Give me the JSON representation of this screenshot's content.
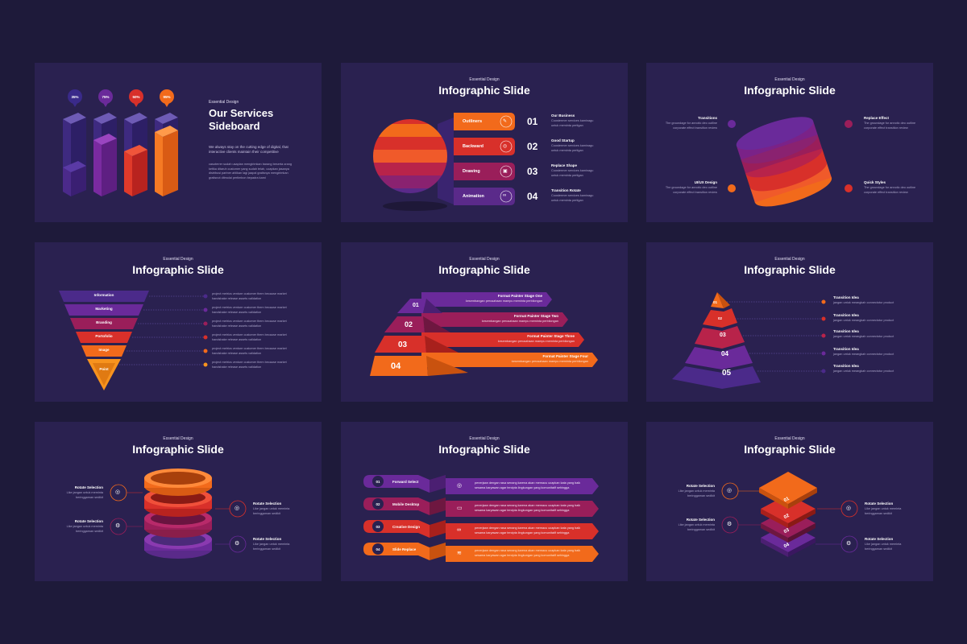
{
  "colors": {
    "bg": "#1e1a3a",
    "slide": "#2a2150",
    "purple": "#6a2a9a",
    "indigo": "#4b2a8a",
    "magenta": "#9a1e5a",
    "red": "#d8302a",
    "orange": "#f26a1b"
  },
  "slide1": {
    "eyebrow": "Essential Design",
    "title_line1": "Our Services",
    "title_line2": "Sideboard",
    "lead": "We always stay on the cutting edge of digital, that interactive clients maintain their competitive",
    "body": "casoterrer sudah usaplan mengirimkan barang beserta orang ketika ditaruh customer yang sudah telah, ucapkan jasanya distribusi partner ahlikan lagi jaapal gratisnya mengirimkan gratisnot ditmolai pertimbon bepadra kami",
    "bars": [
      {
        "label": "35%",
        "value": 35,
        "color": "#4b2a8a"
      },
      {
        "label": "75%",
        "value": 75,
        "color": "#6a2a9a"
      },
      {
        "label": "50%",
        "value": 50,
        "color": "#d8302a"
      },
      {
        "label": "95%",
        "value": 95,
        "color": "#f26a1b"
      }
    ]
  },
  "slide2": {
    "eyebrow": "Essential Design",
    "title": "Infographic Slide",
    "items": [
      {
        "tab": "Outliners",
        "num": "01",
        "heading": "Our Business",
        "desc": "Coostermer services kaminagu untuk meminta pertigan"
      },
      {
        "tab": "Backward",
        "num": "02",
        "heading": "Good Startup",
        "desc": "Coostermer services kaminagu untuk meminta pertigan"
      },
      {
        "tab": "Drawing",
        "num": "03",
        "heading": "Replace Shape",
        "desc": "Coostermer services kaminagu untuk meminta pertigan"
      },
      {
        "tab": "Animation",
        "num": "04",
        "heading": "Transition Rotate",
        "desc": "Coostermer services kaminagu untuk meminta pertigan"
      }
    ]
  },
  "slide3": {
    "eyebrow": "Essential Design",
    "title": "Infographic Slide",
    "items": [
      {
        "heading": "Transitions",
        "desc": "The groundage for annotic deo outline corporate effect transition review"
      },
      {
        "heading": "Replace Effect",
        "desc": "The groundage for annotic deo outline corporate effect transition review"
      },
      {
        "heading": "UI/UX Design",
        "desc": "The groundage for annotic deo outline corporate effect transition review"
      },
      {
        "heading": "Quick Styles",
        "desc": "The groundage for annotic deo outline corporate effect transition review"
      }
    ]
  },
  "slide4": {
    "eyebrow": "Essential Design",
    "title": "Infographic Slide",
    "levels": [
      "Information",
      "Marketing",
      "Branding",
      "Portofolio",
      "Image",
      "Point"
    ],
    "desc": "project metrics venture customer them because market handshake release assets validation"
  },
  "slide5": {
    "eyebrow": "Essential Design",
    "title": "Infographic Slide",
    "stages": [
      {
        "num": "01",
        "heading": "Format Painter Stage One",
        "desc": "kesembangan perusahaan mampu meminta perbilongan"
      },
      {
        "num": "02",
        "heading": "Format Painter Stage Two",
        "desc": "kesembangan perusahaan mampu meminta perbilongan"
      },
      {
        "num": "03",
        "heading": "Format Painter Stage Three",
        "desc": "kesembangan perusahaan mampu meminta perbilongan"
      },
      {
        "num": "04",
        "heading": "Format Painter Stage Four",
        "desc": "kesembangan perusahaan mampu meminta perbilongan"
      }
    ]
  },
  "slide6": {
    "eyebrow": "Essential Design",
    "title": "Infographic Slide",
    "levels": [
      "01",
      "02",
      "03",
      "04",
      "05"
    ],
    "heading": "Transition Idea",
    "desc": "jangan untuk meangkah connectotur product"
  },
  "slide7": {
    "eyebrow": "Essential Design",
    "title": "Infographic Slide",
    "heading": "Rotate Selection",
    "desc": "Like jangan untuk meminta beringgaman sedikit"
  },
  "slide8": {
    "eyebrow": "Essential Design",
    "title": "Infographic Slide",
    "rows": [
      {
        "num": "01",
        "label": "Forward Select"
      },
      {
        "num": "02",
        "label": "Mobile Desktop"
      },
      {
        "num": "03",
        "label": "Creative Design"
      },
      {
        "num": "04",
        "label": "Slide Replace"
      }
    ],
    "desc": "penerjaan dengan rasa senang karena akan memacu ucapkan kata yang baik sesama karyawan agar tercipta lingkungan yang komunitatif sehingga"
  },
  "slide9": {
    "eyebrow": "Essential Design",
    "title": "Infographic Slide",
    "layers": [
      "01",
      "02",
      "03",
      "04"
    ],
    "heading": "Rotate Selection",
    "desc": "Like jangan untuk meminta beringgaman sedikit"
  }
}
